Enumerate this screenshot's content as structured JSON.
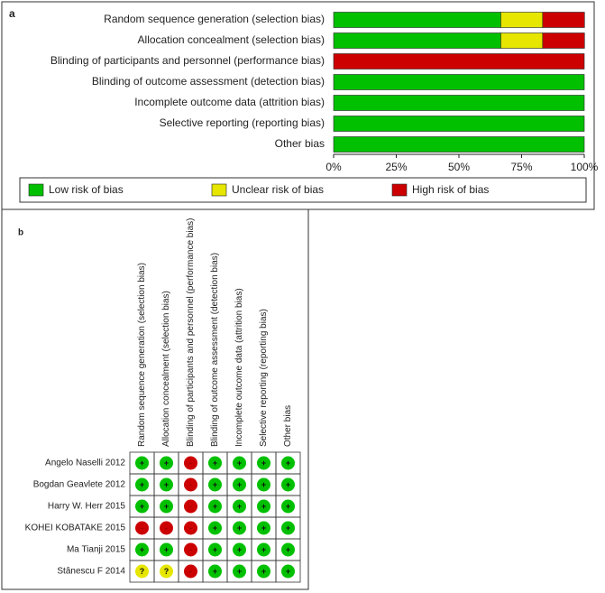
{
  "chart_data": [
    {
      "type": "bar",
      "orientation": "horizontal",
      "stacked": true,
      "panel_label": "a",
      "categories": [
        "Random sequence generation (selection bias)",
        "Allocation concealment (selection bias)",
        "Blinding of participants and personnel (performance bias)",
        "Blinding of outcome assessment (detection bias)",
        "Incomplete outcome data (attrition bias)",
        "Selective reporting (reporting bias)",
        "Other bias"
      ],
      "series": [
        {
          "name": "Low risk of bias",
          "color": "#00c000",
          "values": [
            66.7,
            66.7,
            0,
            100,
            100,
            100,
            100
          ]
        },
        {
          "name": "Unclear risk of bias",
          "color": "#e6e600",
          "values": [
            16.7,
            16.7,
            0,
            0,
            0,
            0,
            0
          ]
        },
        {
          "name": "High risk of bias",
          "color": "#cc0000",
          "values": [
            16.7,
            16.7,
            100,
            0,
            0,
            0,
            0
          ]
        }
      ],
      "xlim": [
        0,
        100
      ],
      "xticks": [
        {
          "value": 0,
          "label": "0%"
        },
        {
          "value": 25,
          "label": "25%"
        },
        {
          "value": 50,
          "label": "50%"
        },
        {
          "value": 75,
          "label": "75%"
        },
        {
          "value": 100,
          "label": "100%"
        }
      ],
      "legend": "bottom"
    },
    {
      "type": "grid",
      "panel_label": "b",
      "columns": [
        "Random sequence generation (selection bias)",
        "Allocation concealment (selection bias)",
        "Blinding of participants and personnel (performance bias)",
        "Blinding of outcome assessment (detection bias)",
        "Incomplete outcome data (attrition bias)",
        "Selective reporting (reporting bias)",
        "Other bias"
      ],
      "rows": [
        "Angelo Naselli 2012",
        "Bogdan Geavlete 2012",
        "Harry W. Herr 2015",
        "KOHEI KOBATAKE 2015",
        "Ma Tianji 2015",
        "Stânescu F 2014"
      ],
      "cells": [
        [
          "+",
          "+",
          "-",
          "+",
          "+",
          "+",
          "+"
        ],
        [
          "+",
          "+",
          "-",
          "+",
          "+",
          "+",
          "+"
        ],
        [
          "+",
          "+",
          "-",
          "+",
          "+",
          "+",
          "+"
        ],
        [
          "-",
          "-",
          "-",
          "+",
          "+",
          "+",
          "+"
        ],
        [
          "+",
          "+",
          "-",
          "+",
          "+",
          "+",
          "+"
        ],
        [
          "?",
          "?",
          "-",
          "+",
          "+",
          "+",
          "+"
        ]
      ],
      "levels": [
        {
          "symbol": "+",
          "color": "#00c000"
        },
        {
          "symbol": "?",
          "color": "#e6e600"
        },
        {
          "symbol": "-",
          "color": "#cc0000"
        }
      ]
    }
  ]
}
